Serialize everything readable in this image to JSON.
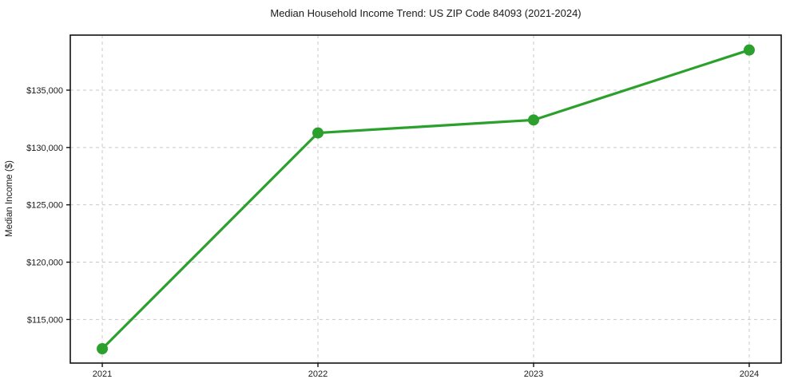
{
  "chart_data": {
    "type": "line",
    "title": "Median Household Income Trend: US ZIP Code 84093 (2021-2024)",
    "xlabel": "",
    "ylabel": "Median Income ($)",
    "categories": [
      "2021",
      "2022",
      "2023",
      "2024"
    ],
    "series": [
      {
        "name": "Median Household Income",
        "values": [
          112450,
          131270,
          132400,
          138500
        ]
      }
    ],
    "y_ticks": [
      {
        "value": 115000,
        "label": "$115,000"
      },
      {
        "value": 120000,
        "label": "$120,000"
      },
      {
        "value": 125000,
        "label": "$125,000"
      },
      {
        "value": 130000,
        "label": "$130,000"
      },
      {
        "value": 135000,
        "label": "$135,000"
      }
    ],
    "ylim": [
      111200,
      139800
    ],
    "grid": "dashed, both axes",
    "legend_position": "none",
    "colors": {
      "line": "#2ca02c",
      "marker": "#2ca02c",
      "grid": "#c9c9c9",
      "spine": "#111111",
      "background": "#ffffff"
    }
  }
}
